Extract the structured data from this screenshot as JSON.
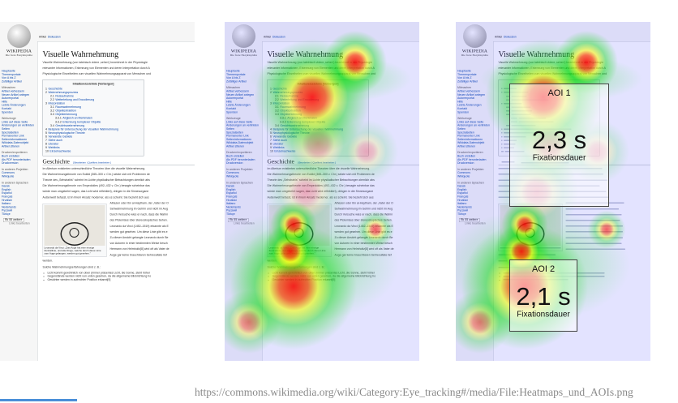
{
  "wiki": {
    "logo_word": "WIKIPEDIA",
    "logo_sub": "Die freie Enzyklopädie",
    "tabs": [
      "Artikel",
      "Diskussion"
    ],
    "title": "Visuelle Wahrnehmung",
    "sidebar": [
      {
        "items": [
          "Hauptseite",
          "Themenportale",
          "Von A bis Z",
          "Zufälliger Artikel"
        ]
      },
      {
        "heading": "Mitmachen",
        "items": [
          "Artikel verbessern",
          "Neuen Artikel anlegen",
          "Autorenportal",
          "Hilfe",
          "Letzte Änderungen",
          "Kontakt",
          "Spenden"
        ]
      },
      {
        "heading": "Werkzeuge",
        "items": [
          "Links auf diese Seite",
          "Änderungen an verlinkten Seiten",
          "Spezialseiten",
          "Permanenter Link",
          "Seiteninformationen",
          "Wikidata-Datenobjekt",
          "Artikel zitieren"
        ]
      },
      {
        "heading": "Drucken/exportieren",
        "items": [
          "Buch erstellen",
          "Als PDF herunterladen",
          "Druckversion"
        ]
      },
      {
        "heading": "In anderen Projekten",
        "items": [
          "Commons",
          "Wikiquote"
        ]
      },
      {
        "heading": "In anderen Sprachen",
        "items": [
          "Dansk",
          "English",
          "Español",
          "Français",
          "Hrvatski",
          "Italiano",
          "Nederlands",
          "Русский",
          "Türkçe"
        ]
      }
    ],
    "more_languages": "Rk 55 weitere",
    "edit_links": "Links bearbeiten",
    "intro": [
      "Visuelle Wahrnehmung (von lateinisch videre ‚sehen') bezeichnet in der Physiologie",
      "relevanter Informationen, Erkennung von Elementen und deren Interpretation durch A",
      "Physiologische Einzelheiten zum visuellen Wahrnehmungsapparat von Menschen und"
    ],
    "toc_title": "Inhaltsverzeichnis [Verbergen]",
    "toc": [
      [
        "1",
        "Geschichte",
        0
      ],
      [
        "2",
        "Wahrnehmungsprozess",
        0
      ],
      [
        "2.1",
        "Reizaufnahme",
        1
      ],
      [
        "2.2",
        "Weiterleitung und Encodierung",
        1
      ],
      [
        "3",
        "Interpretation",
        0
      ],
      [
        "3.1",
        "Raumwahrnehmung",
        1
      ],
      [
        "3.2",
        "Objektextraktion",
        1
      ],
      [
        "3.3",
        "Objekterkennung",
        1
      ],
      [
        "3.3.1",
        "Abgleich an Merkmalen",
        2
      ],
      [
        "3.3.2",
        "Erkennung komplexer Objekte",
        2
      ],
      [
        "3.4",
        "Gesichtswahrnehmung",
        1
      ],
      [
        "4",
        "Beispiele für Untersuchung der visuellen Wahrnehmung",
        0
      ],
      [
        "5",
        "Neurophysiologische Theorie",
        0
      ],
      [
        "6",
        "Verwandte Gebiete",
        0
      ],
      [
        "7",
        "Siehe auch",
        0
      ],
      [
        "8",
        "Literatur",
        0
      ],
      [
        "9",
        "Weblinks",
        0
      ],
      [
        "10",
        "Einzelnachweise",
        0
      ]
    ],
    "section": "Geschichte",
    "section_edit": "[ Bearbeiten | Quelltext bearbeiten ]",
    "paras": [
      "Im Altertum existierten unterschiedliche Theorien über die visuelle Wahrnehmung.",
      "Die Wahrnehmungstheorie von Euklid (365–300 v. Chr.) setzte sich mit Problemen de",
      "Theorie des „Sehstrahls\" scheint im Lichte physikalischer Betrachtungen ziemlich abs",
      "Die Wahrnehmungstheorie von Empedokles (492–432 v. Chr.) besagte scheinbar das",
      "würde man umgekehrt sagen, das Licht wird reflektiert), dringen in die Sinnesorgane",
      "Außenwelt befasst, ist in ihrem Ansatz moderner, als es scheint. Sie bezieht sich aus"
    ],
    "side_paras": [
      "Alhazen oder Ibn al-Haytham, der „Vater der O",
      "Sehwahrnehmung im Gehirn und nicht im Aug",
      "Durch Versuche wies er nach, dass die Wahrn",
      "des Ptolemäus über stereoskopisches Sehen.",
      "Leonardo da Vinci (1452–1519) erkannte als E",
      "werden gut gesehen. Um diese Linie gibt es e",
      "Zu dieser Ansicht gelangte Leonardo durch Be",
      "von Autoren in einer bestimmten Weise besch",
      "Hermann von Helmholtz[8] wird oft als Vater de",
      "Auge gar keine brauchbaren Sehresultate lief",
      "werden."
    ],
    "image_caption": "Leonardo da Vinci: „Das Auge hat eine einzige Zentrallinie, und alle Dinge, welche durch diese Linie zum Auge gelangen, werden gut gesehen.\"",
    "list_intro": "Solche Wahrnehmungserfahrungen sind z. B.:",
    "bullets": [
      "Licht kommt gewöhnlich von oben (immer präsentes Licht, die Sonne, steht höher",
      "Gegenstände werden nicht von unten gesehen, da die allgemeine Blickrichtung ho",
      "Gesichter werden in aufrechter Position erkannt[9]"
    ]
  },
  "aois": [
    {
      "label": "AOI 1",
      "value": "2,3 s",
      "unit_label": "Fixationsdauer"
    },
    {
      "label": "AOI 2",
      "value": "2,1 s",
      "unit_label": "Fixationsdauer"
    }
  ],
  "panels": [
    "original",
    "heatmap",
    "heatmap-with-aois"
  ],
  "caption": "https://commons.wikimedia.org/wiki/Category:Eye_tracking#/media/File:Heatmaps_und_AOIs.png",
  "colors": {
    "link": "#0645ad",
    "heat_high": "#ff0000",
    "heat_mid": "#ffff00",
    "heat_low": "#00ff00",
    "heat_base": "#6060ff"
  }
}
